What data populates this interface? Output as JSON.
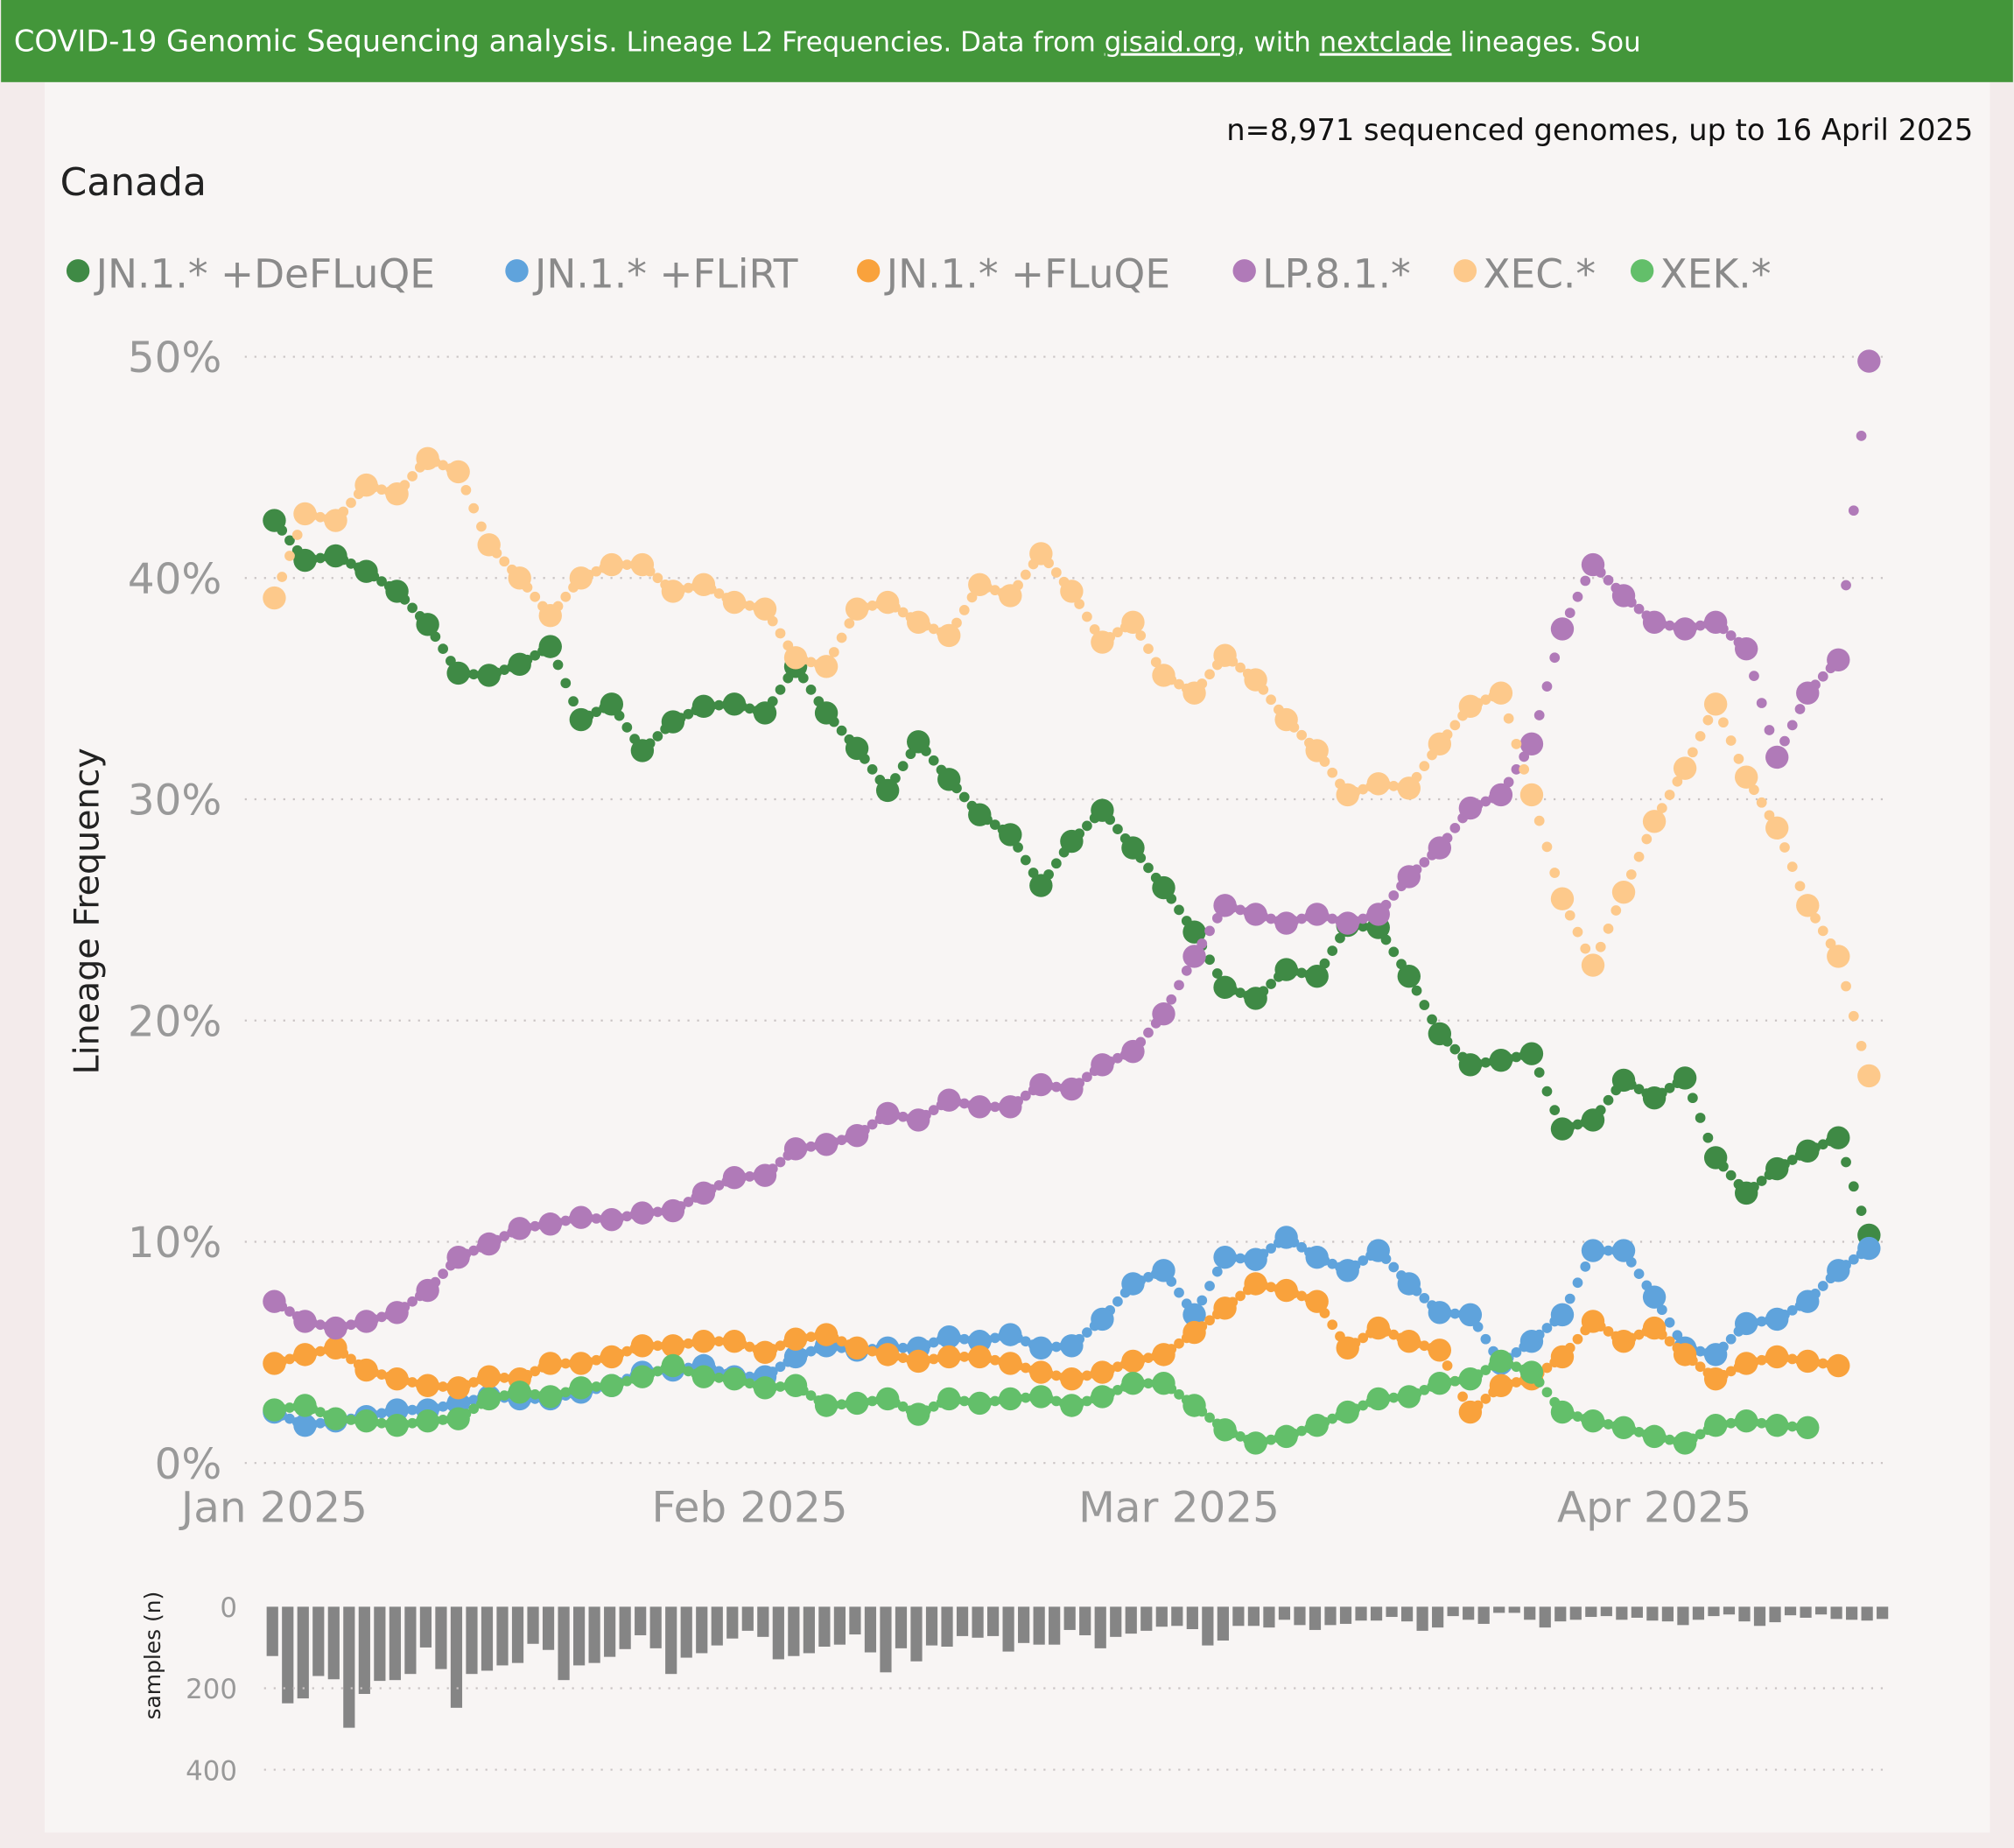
{
  "header": {
    "title_main": "COVID-19 Genomic Sequencing analysis.",
    "title_sub_1": " Lineage L2 Frequencies. Data from ",
    "link_gisaid": "gisaid.org",
    "title_sub_2": ", with ",
    "link_nextclade": "nextclade",
    "title_sub_3": " lineages. Sou",
    "color": "#43963a"
  },
  "summary": "n=8,971 sequenced genomes, up to 16 April 2025",
  "region": "Canada",
  "chart_data": [
    {
      "type": "scatter",
      "ylabel": "Lineage Frequency",
      "ylim": [
        0,
        50
      ],
      "y_ticks": [
        "0%",
        "10%",
        "20%",
        "30%",
        "40%",
        "50%"
      ],
      "x_ticks": [
        {
          "date": "2025-01-01",
          "label": "Jan 2025"
        },
        {
          "date": "2025-02-01",
          "label": "Feb 2025"
        },
        {
          "date": "2025-03-01",
          "label": "Mar 2025"
        },
        {
          "date": "2025-04-01",
          "label": "Apr 2025"
        }
      ],
      "xlim": [
        "2025-01-01",
        "2025-04-16"
      ],
      "grid": "horizontal dotted",
      "legend_placement": "top-left",
      "x": [
        "2025-01-01",
        "2025-01-03",
        "2025-01-05",
        "2025-01-07",
        "2025-01-09",
        "2025-01-11",
        "2025-01-13",
        "2025-01-15",
        "2025-01-17",
        "2025-01-19",
        "2025-01-21",
        "2025-01-23",
        "2025-01-25",
        "2025-01-27",
        "2025-01-29",
        "2025-01-31",
        "2025-02-02",
        "2025-02-04",
        "2025-02-06",
        "2025-02-08",
        "2025-02-10",
        "2025-02-12",
        "2025-02-14",
        "2025-02-16",
        "2025-02-18",
        "2025-02-20",
        "2025-02-22",
        "2025-02-24",
        "2025-02-26",
        "2025-02-28",
        "2025-03-02",
        "2025-03-04",
        "2025-03-06",
        "2025-03-08",
        "2025-03-10",
        "2025-03-12",
        "2025-03-14",
        "2025-03-16",
        "2025-03-18",
        "2025-03-20",
        "2025-03-22",
        "2025-03-24",
        "2025-03-26",
        "2025-03-28",
        "2025-03-30",
        "2025-04-01",
        "2025-04-03",
        "2025-04-05",
        "2025-04-07",
        "2025-04-09",
        "2025-04-11",
        "2025-04-13",
        "2025-04-15"
      ],
      "series": [
        {
          "name": "JN.1.* +DeFLuQE",
          "color": "#3f8a45",
          "values": [
            42.6,
            40.8,
            41.0,
            40.3,
            39.4,
            37.9,
            35.7,
            35.6,
            36.1,
            36.9,
            33.6,
            34.3,
            32.2,
            33.5,
            34.2,
            34.3,
            33.9,
            36.0,
            33.9,
            32.3,
            30.4,
            32.6,
            30.9,
            29.3,
            28.4,
            26.1,
            28.1,
            29.5,
            27.8,
            26.0,
            24.0,
            21.5,
            21.0,
            22.3,
            22.0,
            24.3,
            24.2,
            22.0,
            19.4,
            18.0,
            18.2,
            18.5,
            15.1,
            15.5,
            17.3,
            16.5,
            17.4,
            13.8,
            12.2,
            13.3,
            14.1,
            14.7,
            10.3
          ]
        },
        {
          "name": "JN.1.* +FLiRT",
          "color": "#5fa3dc",
          "values": [
            2.3,
            1.7,
            1.9,
            2.1,
            2.4,
            2.4,
            2.7,
            3.0,
            2.9,
            2.9,
            3.2,
            3.5,
            4.1,
            4.2,
            4.4,
            3.9,
            3.9,
            4.8,
            5.3,
            5.1,
            5.2,
            5.2,
            5.7,
            5.5,
            5.8,
            5.2,
            5.3,
            6.5,
            8.1,
            8.7,
            6.7,
            9.3,
            9.2,
            10.2,
            9.3,
            8.7,
            9.6,
            8.1,
            6.8,
            6.7,
            4.5,
            5.5,
            6.7,
            9.6,
            9.6,
            7.5,
            5.2,
            4.9,
            6.3,
            6.5,
            7.3,
            8.7,
            9.7
          ]
        },
        {
          "name": "JN.1.* +FLuQE",
          "color": "#f9a23c",
          "values": [
            4.5,
            4.9,
            5.2,
            4.2,
            3.8,
            3.5,
            3.4,
            3.9,
            3.8,
            4.5,
            4.5,
            4.8,
            5.3,
            5.3,
            5.5,
            5.5,
            5.0,
            5.6,
            5.8,
            5.2,
            4.9,
            4.6,
            4.8,
            4.8,
            4.5,
            4.1,
            3.8,
            4.1,
            4.6,
            4.9,
            5.9,
            7.0,
            8.1,
            7.8,
            7.3,
            5.2,
            6.1,
            5.5,
            5.1,
            2.3,
            3.5,
            3.8,
            4.8,
            6.4,
            5.5,
            6.1,
            4.9,
            3.8,
            4.5,
            4.8,
            4.6,
            4.4,
            null
          ]
        },
        {
          "name": "LP.8.1.*",
          "color": "#b07ab8",
          "values": [
            7.3,
            6.4,
            6.1,
            6.4,
            6.8,
            7.8,
            9.3,
            9.9,
            10.6,
            10.8,
            11.1,
            11.0,
            11.3,
            11.4,
            12.2,
            12.9,
            13.0,
            14.2,
            14.4,
            14.8,
            15.8,
            15.5,
            16.4,
            16.1,
            16.1,
            17.1,
            16.9,
            18.0,
            18.6,
            20.3,
            22.9,
            25.2,
            24.8,
            24.4,
            24.8,
            24.4,
            24.8,
            26.5,
            27.8,
            29.6,
            30.2,
            32.5,
            37.7,
            40.6,
            39.2,
            38.0,
            37.7,
            38.0,
            36.8,
            31.9,
            34.8,
            36.3,
            49.8
          ]
        },
        {
          "name": "XEC.*",
          "color": "#fdc98b",
          "values": [
            39.1,
            42.9,
            42.6,
            44.2,
            43.8,
            45.4,
            44.8,
            41.5,
            40.0,
            38.3,
            40.0,
            40.6,
            40.6,
            39.4,
            39.7,
            38.9,
            38.6,
            36.4,
            36.0,
            38.6,
            38.9,
            38.0,
            37.4,
            39.7,
            39.2,
            41.1,
            39.4,
            37.1,
            38.0,
            35.6,
            34.8,
            36.5,
            35.4,
            33.6,
            32.2,
            30.2,
            30.7,
            30.5,
            32.5,
            34.2,
            34.8,
            30.2,
            25.5,
            22.5,
            25.8,
            29.0,
            31.4,
            34.3,
            31.0,
            28.7,
            25.2,
            22.9,
            17.5
          ]
        },
        {
          "name": "XEK.*",
          "color": "#63bf6a",
          "values": [
            2.4,
            2.6,
            2.0,
            1.9,
            1.7,
            1.9,
            2.0,
            2.9,
            3.2,
            3.0,
            3.4,
            3.5,
            3.9,
            4.4,
            3.9,
            3.8,
            3.4,
            3.5,
            2.6,
            2.7,
            2.9,
            2.2,
            2.9,
            2.7,
            2.9,
            3.0,
            2.6,
            3.0,
            3.6,
            3.6,
            2.6,
            1.5,
            0.9,
            1.2,
            1.7,
            2.3,
            2.9,
            3.0,
            3.6,
            3.8,
            4.6,
            4.1,
            2.3,
            1.9,
            1.6,
            1.2,
            0.9,
            1.7,
            1.9,
            1.7,
            1.6,
            null,
            null
          ]
        }
      ]
    },
    {
      "type": "bar",
      "ylabel": "samples (n)",
      "ylim": [
        0,
        400
      ],
      "y_ticks": [
        "0",
        "200",
        "400"
      ],
      "inverted": true,
      "xlim": [
        "2025-01-01",
        "2025-04-16"
      ],
      "bar_color": "#858585",
      "values": [
        121,
        237,
        225,
        170,
        178,
        297,
        214,
        182,
        180,
        165,
        100,
        153,
        248,
        165,
        157,
        144,
        138,
        91,
        106,
        180,
        144,
        138,
        123,
        104,
        70,
        102,
        165,
        125,
        114,
        95,
        78,
        59,
        74,
        129,
        121,
        114,
        98,
        93,
        68,
        112,
        161,
        102,
        134,
        95,
        98,
        72,
        76,
        72,
        110,
        89,
        93,
        93,
        57,
        70,
        102,
        74,
        66,
        59,
        49,
        47,
        55,
        95,
        83,
        47,
        47,
        51,
        32,
        45,
        57,
        45,
        42,
        34,
        34,
        25,
        36,
        59,
        51,
        23,
        32,
        42,
        15,
        15,
        32,
        51,
        36,
        32,
        25,
        23,
        32,
        27,
        34,
        36,
        45,
        32,
        23,
        19,
        36,
        47,
        38,
        21,
        27,
        19,
        30,
        32,
        34,
        30
      ]
    }
  ]
}
